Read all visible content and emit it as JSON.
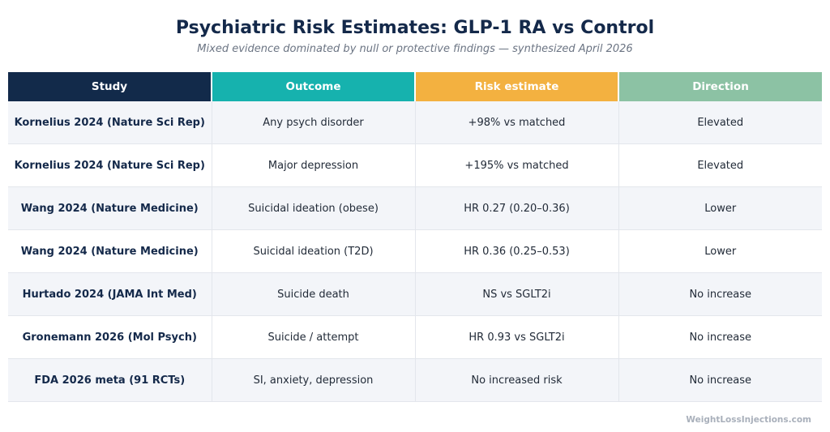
{
  "title": "Psychiatric Risk Estimates: GLP-1 RA vs Control",
  "subtitle": "Mixed evidence dominated by null or protective findings — synthesized April 2026",
  "columns": [
    {
      "label": "Study",
      "color": "#122a4a"
    },
    {
      "label": "Outcome",
      "color": "#16b2ae"
    },
    {
      "label": "Risk estimate",
      "color": "#f3b140"
    },
    {
      "label": "Direction",
      "color": "#8cc2a4"
    }
  ],
  "rows": [
    {
      "study": "Kornelius 2024 (Nature Sci Rep)",
      "outcome": "Any psych disorder",
      "estimate": "+98% vs matched",
      "direction": "Elevated"
    },
    {
      "study": "Kornelius 2024 (Nature Sci Rep)",
      "outcome": "Major depression",
      "estimate": "+195% vs matched",
      "direction": "Elevated"
    },
    {
      "study": "Wang 2024 (Nature Medicine)",
      "outcome": "Suicidal ideation (obese)",
      "estimate": "HR 0.27 (0.20–0.36)",
      "direction": "Lower"
    },
    {
      "study": "Wang 2024 (Nature Medicine)",
      "outcome": "Suicidal ideation (T2D)",
      "estimate": "HR 0.36 (0.25–0.53)",
      "direction": "Lower"
    },
    {
      "study": "Hurtado 2024 (JAMA Int Med)",
      "outcome": "Suicide death",
      "estimate": "NS vs SGLT2i",
      "direction": "No increase"
    },
    {
      "study": "Gronemann 2026 (Mol Psych)",
      "outcome": "Suicide / attempt",
      "estimate": "HR 0.93 vs SGLT2i",
      "direction": "No increase"
    },
    {
      "study": "FDA 2026 meta (91 RCTs)",
      "outcome": "SI, anxiety, depression",
      "estimate": "No increased risk",
      "direction": "No increase"
    }
  ],
  "watermark": "WeightLossInjections.com"
}
